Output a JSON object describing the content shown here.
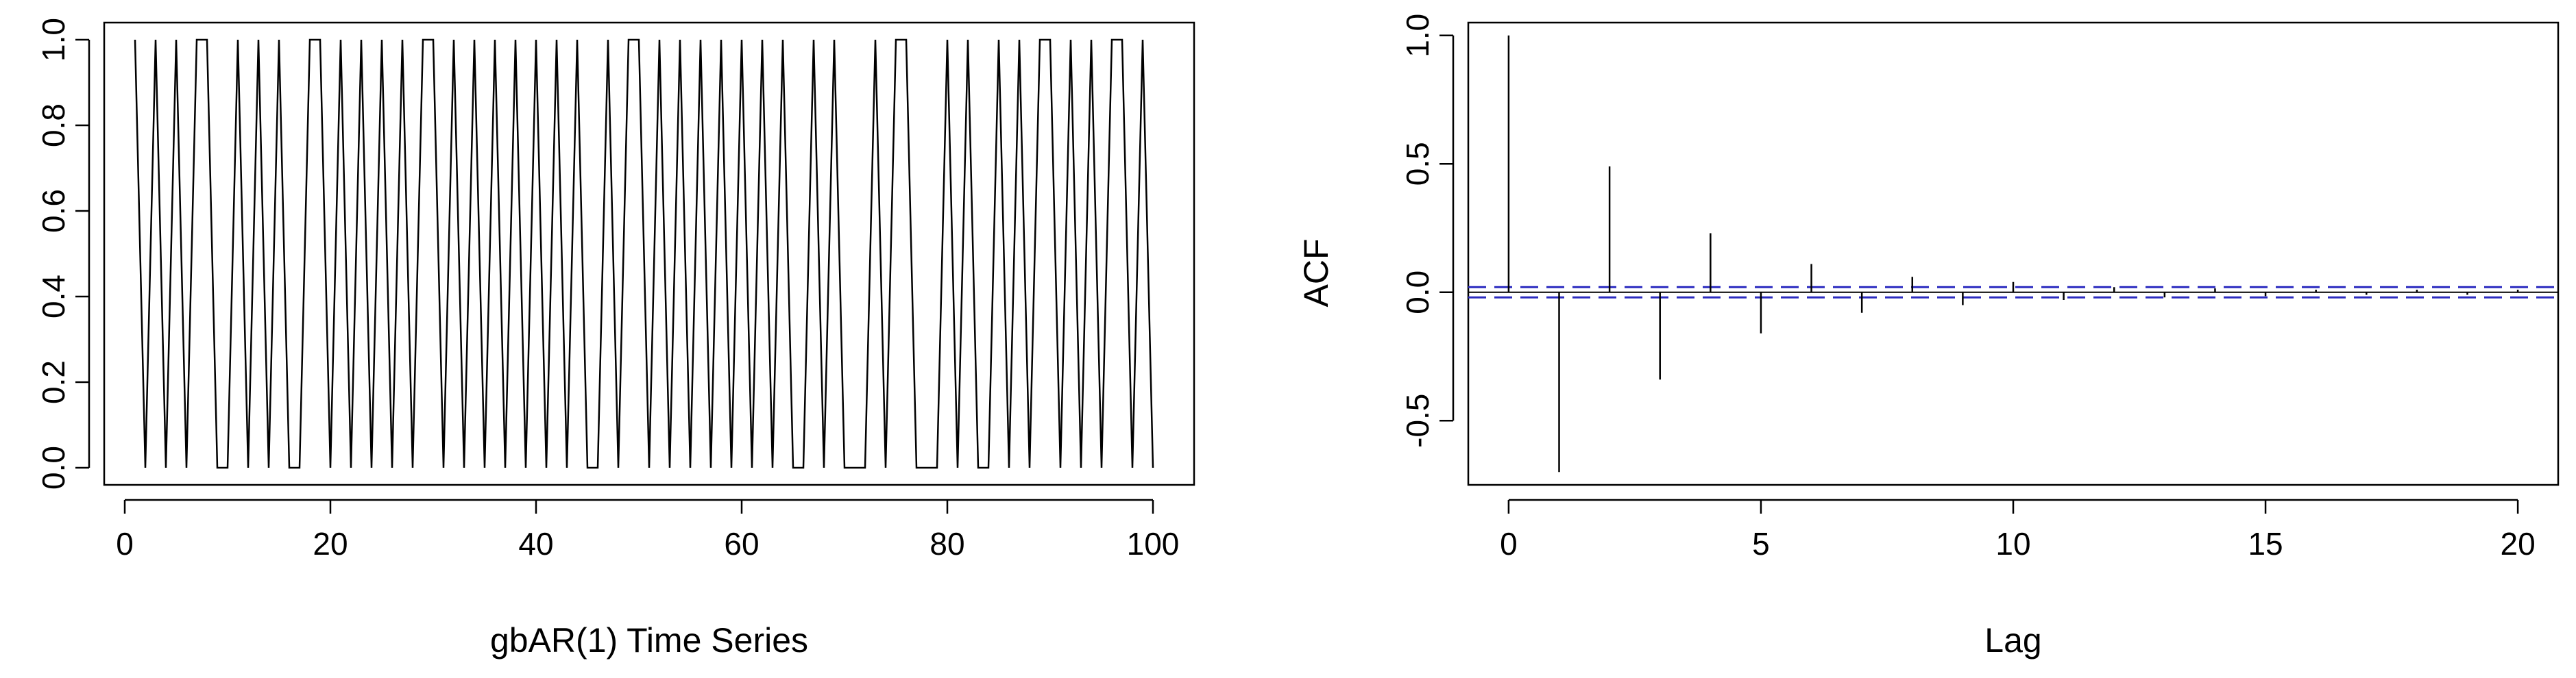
{
  "chart_data": [
    {
      "type": "line",
      "xlabel": "gbAR(1) Time Series",
      "ylabel": "",
      "xlim": [
        -2,
        104
      ],
      "ylim": [
        -0.04,
        1.04
      ],
      "xticks": [
        0,
        20,
        40,
        60,
        80,
        100
      ],
      "yticks": [
        0.0,
        0.2,
        0.4,
        0.6,
        0.8,
        1.0
      ],
      "ytick_labels": [
        "0.0",
        "0.2",
        "0.4",
        "0.6",
        "0.8",
        "1.0"
      ],
      "x": [
        1,
        2,
        3,
        4,
        5,
        6,
        7,
        8,
        9,
        10,
        11,
        12,
        13,
        14,
        15,
        16,
        17,
        18,
        19,
        20,
        21,
        22,
        23,
        24,
        25,
        26,
        27,
        28,
        29,
        30,
        31,
        32,
        33,
        34,
        35,
        36,
        37,
        38,
        39,
        40,
        41,
        42,
        43,
        44,
        45,
        46,
        47,
        48,
        49,
        50,
        51,
        52,
        53,
        54,
        55,
        56,
        57,
        58,
        59,
        60,
        61,
        62,
        63,
        64,
        65,
        66,
        67,
        68,
        69,
        70,
        71,
        72,
        73,
        74,
        75,
        76,
        77,
        78,
        79,
        80,
        81,
        82,
        83,
        84,
        85,
        86,
        87,
        88,
        89,
        90,
        91,
        92,
        93,
        94,
        95,
        96,
        97,
        98,
        99,
        100
      ],
      "values": [
        1,
        0,
        1,
        0,
        1,
        0,
        1,
        1,
        0,
        0,
        1,
        0,
        1,
        0,
        1,
        0,
        0,
        1,
        1,
        0,
        1,
        0,
        1,
        0,
        1,
        0,
        1,
        0,
        1,
        1,
        0,
        1,
        0,
        1,
        0,
        1,
        0,
        1,
        0,
        1,
        0,
        1,
        0,
        1,
        0,
        0,
        1,
        0,
        1,
        1,
        0,
        1,
        0,
        1,
        0,
        1,
        0,
        1,
        0,
        1,
        0,
        1,
        0,
        1,
        0,
        0,
        1,
        0,
        1,
        0,
        0,
        0,
        1,
        0,
        1,
        1,
        0,
        0,
        0,
        1,
        0,
        1,
        0,
        0,
        1,
        0,
        1,
        0,
        1,
        1,
        0,
        1,
        0,
        1,
        0,
        1,
        1,
        0,
        1,
        0
      ],
      "grid": false
    },
    {
      "type": "bar",
      "xlabel": "Lag",
      "ylabel": "ACF",
      "xlim": [
        -0.8,
        20.8
      ],
      "ylim": [
        -0.75,
        1.05
      ],
      "xticks": [
        0,
        5,
        10,
        15,
        20
      ],
      "yticks": [
        -0.5,
        0.0,
        0.5,
        1.0
      ],
      "ytick_labels": [
        "-0.5",
        "0.0",
        "0.5",
        "1.0"
      ],
      "lags": [
        0,
        1,
        2,
        3,
        4,
        5,
        6,
        7,
        8,
        9,
        10,
        11,
        12,
        13,
        14,
        15,
        16,
        17,
        18,
        19,
        20
      ],
      "values": [
        1.0,
        -0.7,
        0.49,
        -0.34,
        0.23,
        -0.16,
        0.11,
        -0.08,
        0.06,
        -0.05,
        0.04,
        -0.03,
        0.02,
        -0.02,
        0.015,
        -0.015,
        0.01,
        -0.01,
        0.01,
        -0.01,
        0.01
      ],
      "confidence_band": 0.02,
      "grid": false
    }
  ],
  "colors": {
    "line": "#000000",
    "confidence": "#2b2bbf"
  }
}
